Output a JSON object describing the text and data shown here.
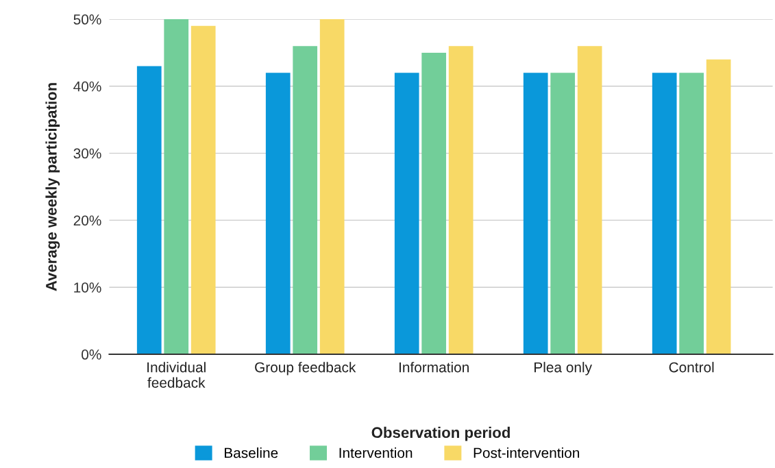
{
  "chart_data": {
    "type": "bar",
    "xlabel": "Observation period",
    "ylabel": "Average weekly participation",
    "categories": [
      "Individual\nfeedback",
      "Group feedback",
      "Information",
      "Plea only",
      "Control"
    ],
    "series": [
      {
        "name": "Baseline",
        "color": "#0a98da",
        "values": [
          43,
          42,
          42,
          42,
          42
        ]
      },
      {
        "name": "Intervention",
        "color": "#72ce99",
        "values": [
          50,
          46,
          45,
          42,
          42
        ]
      },
      {
        "name": "Post-intervention",
        "color": "#f8d966",
        "values": [
          49,
          50,
          46,
          46,
          44
        ]
      }
    ],
    "ylim": [
      0,
      50
    ],
    "yticks": [
      {
        "value": 0,
        "label": "0%"
      },
      {
        "value": 10,
        "label": "10%"
      },
      {
        "value": 20,
        "label": "20%"
      },
      {
        "value": 30,
        "label": "30%"
      },
      {
        "value": 40,
        "label": "40%"
      },
      {
        "value": 50,
        "label": "50%"
      }
    ],
    "grid": "y",
    "legend": "bottom"
  }
}
